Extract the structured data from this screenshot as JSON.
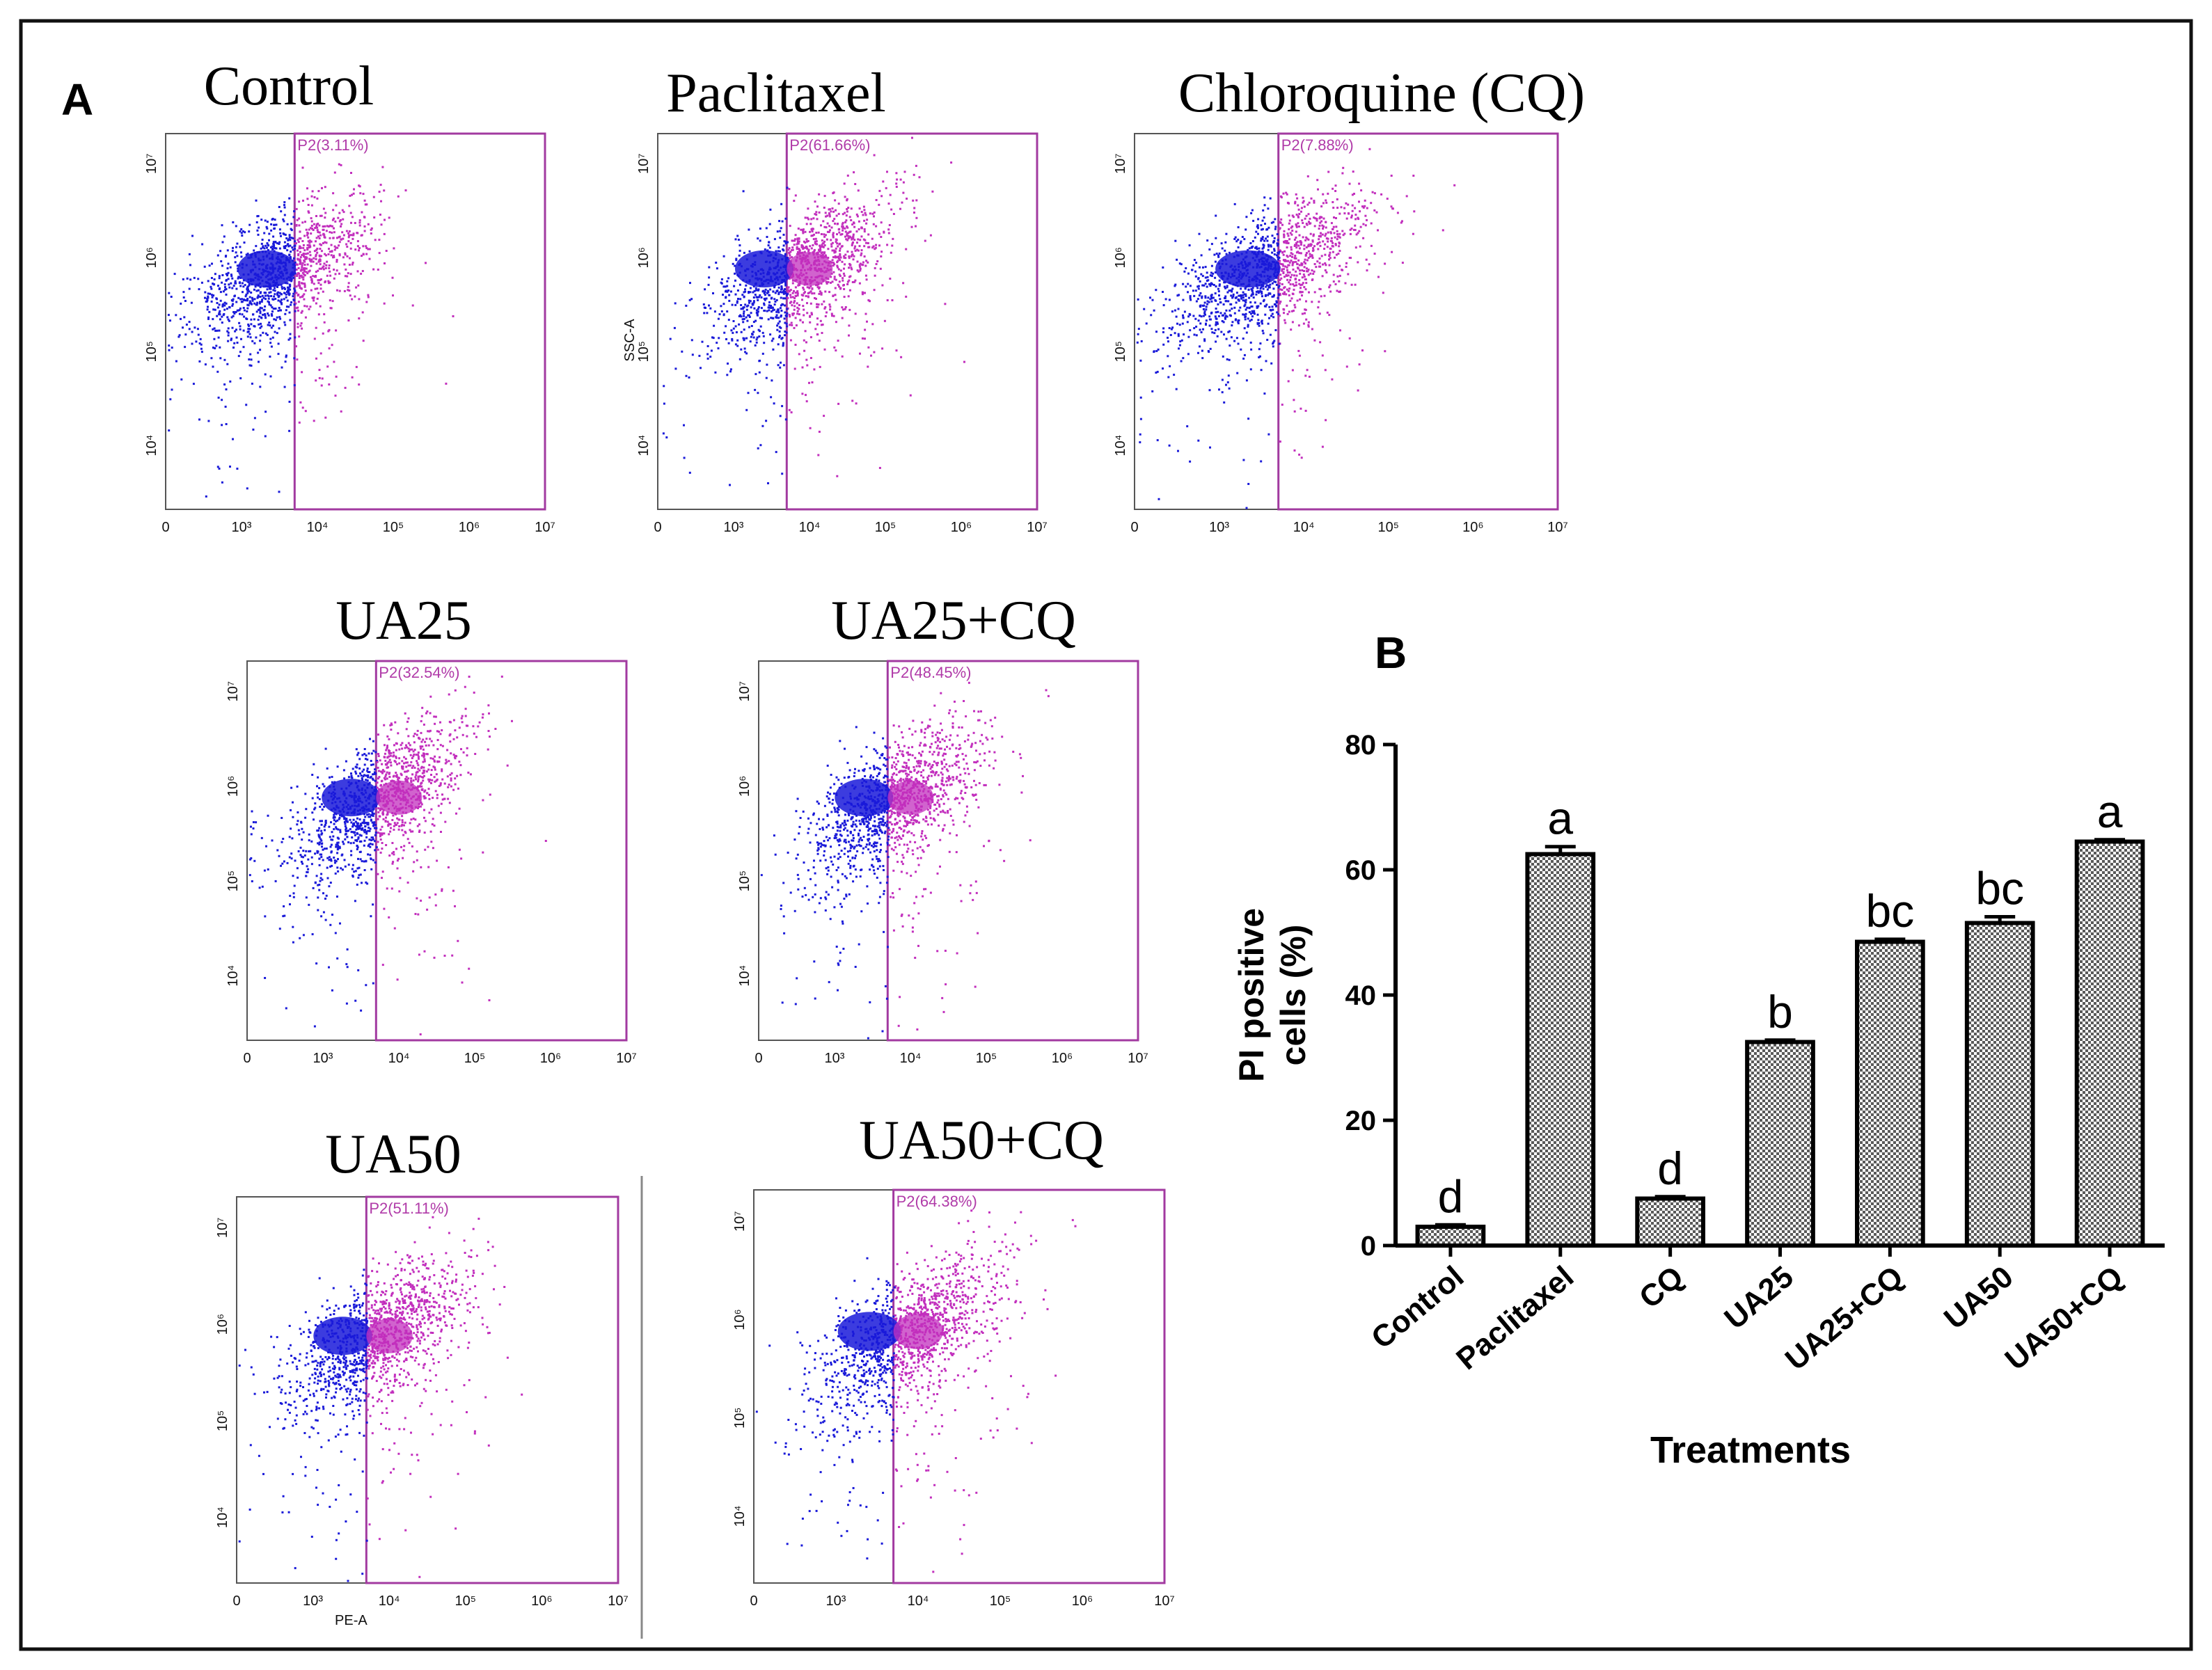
{
  "panel_a_label": "A",
  "panel_b_label": "B",
  "flow_plots": [
    {
      "title": "Control",
      "gate": "P2(3.11%)",
      "percent_positive": 3.11
    },
    {
      "title": "Paclitaxel",
      "gate": "P2(61.66%)",
      "percent_positive": 61.66
    },
    {
      "title": "Chloroquine (CQ)",
      "gate": "P2(7.88%)",
      "percent_positive": 7.88
    },
    {
      "title": "UA25",
      "gate": "P2(32.54%)",
      "percent_positive": 32.54
    },
    {
      "title": "UA25+CQ",
      "gate": "P2(48.45%)",
      "percent_positive": 48.45
    },
    {
      "title": "UA50",
      "gate": "P2(51.11%)",
      "percent_positive": 51.11
    },
    {
      "title": "UA50+CQ",
      "gate": "P2(64.38%)",
      "percent_positive": 64.38
    }
  ],
  "flow_axis": {
    "x_ticks": [
      "0",
      "10³",
      "10⁴",
      "10⁵",
      "10⁶",
      "10⁷"
    ],
    "y_ticks": [
      "10⁴",
      "10⁵",
      "10⁶",
      "10⁷"
    ],
    "x_label": "PE-A",
    "y_label": "SSC-A"
  },
  "chart_data": {
    "type": "bar",
    "title": "",
    "categories": [
      "Control",
      "Paclitaxel",
      "CQ",
      "UA25",
      "UA25+CQ",
      "UA50",
      "UA50+CQ"
    ],
    "values": [
      3,
      62.5,
      7.5,
      32.5,
      48.5,
      51.5,
      64.5
    ],
    "errors": [
      0.3,
      1.2,
      0.3,
      0.3,
      0.4,
      1.0,
      0.3
    ],
    "significance": [
      "d",
      "a",
      "d",
      "b",
      "bc",
      "bc",
      "a"
    ],
    "xlabel": "Treatments",
    "ylabel_line1": "PI positive",
    "ylabel_line2": "cells (%)",
    "ylim": [
      0,
      80
    ],
    "yticks": [
      0,
      20,
      40,
      60,
      80
    ],
    "ytick_labels": [
      "0",
      "20",
      "40",
      "60",
      "80"
    ]
  },
  "colors": {
    "frame": "#111111",
    "blue_cells": "#1a1ad9",
    "magenta_cells": "#c22fbd",
    "gate_line": "#a23aa0",
    "bar_fill": "#8a8a8a"
  }
}
